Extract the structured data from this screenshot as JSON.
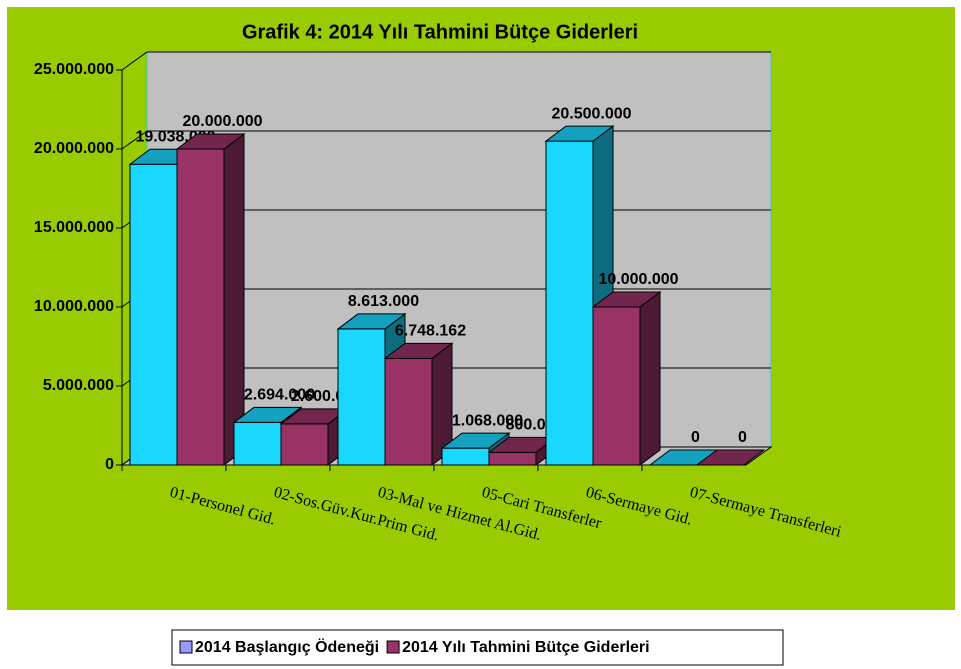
{
  "chart_data": {
    "type": "bar3d",
    "title": "Grafik 4: 2014 Yılı Tahmini Bütçe Giderleri",
    "categories": [
      "01-Personel Gid.",
      "02-Sos.Güv.Kur.Prim Gid.",
      "03-Mal ve Hizmet Al.Gid.",
      "05-Cari Transferler",
      "06-Sermaye Gid.",
      "07-Sermaye Transferleri"
    ],
    "series": [
      {
        "name": "2014 Başlangıç Ödeneği",
        "color": "#1ad7ff",
        "legend_color": "#9999ff",
        "values": [
          19038000,
          2694000,
          8613000,
          1068000,
          20500000,
          0
        ],
        "value_labels": [
          "19.038.000",
          "2.694.000",
          "8.613.000",
          "1.068.000",
          "20.500.000",
          "0"
        ]
      },
      {
        "name": "2014 Yılı Tahmini Bütçe Giderleri",
        "color": "#993366",
        "legend_color": "#993366",
        "values": [
          20000000,
          2600000,
          6748162,
          800000,
          10000000,
          0
        ],
        "value_labels": [
          "20.000.000",
          "2.600.000",
          "6.748.162",
          "800.000",
          "10.000.000",
          "0"
        ]
      }
    ],
    "ylim": [
      0,
      25000000
    ],
    "yticks": [
      0,
      {
        "value": 5000000,
        "label": "5.000.000"
      },
      {
        "value": 10000000,
        "label": "10.000.000"
      },
      {
        "value": 15000000,
        "label": "15.000.000"
      },
      {
        "value": 20000000,
        "label": "20.000.000"
      },
      {
        "value": 25000000,
        "label": "25.000.000"
      }
    ],
    "grid": true
  }
}
